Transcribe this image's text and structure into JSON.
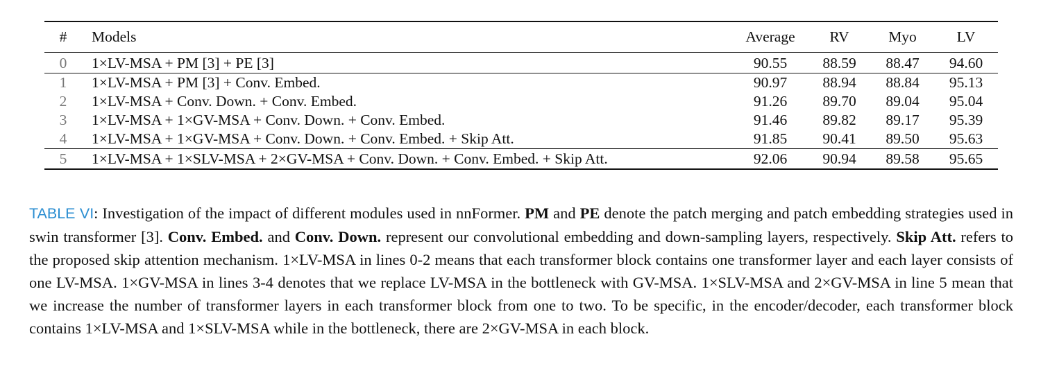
{
  "table": {
    "headers": {
      "index": "#",
      "models": "Models",
      "average": "Average",
      "rv": "RV",
      "myo": "Myo",
      "lv": "LV"
    },
    "rows": [
      {
        "index": "0",
        "model": "1×LV-MSA + PM [3] + PE [3]",
        "average": "90.55",
        "rv": "88.59",
        "myo": "88.47",
        "lv": "94.60"
      },
      {
        "index": "1",
        "model": "1×LV-MSA + PM [3] + Conv. Embed.",
        "average": "90.97",
        "rv": "88.94",
        "myo": "88.84",
        "lv": "95.13"
      },
      {
        "index": "2",
        "model": "1×LV-MSA + Conv. Down. + Conv. Embed.",
        "average": "91.26",
        "rv": "89.70",
        "myo": "89.04",
        "lv": "95.04"
      },
      {
        "index": "3",
        "model": "1×LV-MSA + 1×GV-MSA + Conv. Down. + Conv. Embed.",
        "average": "91.46",
        "rv": "89.82",
        "myo": "89.17",
        "lv": "95.39"
      },
      {
        "index": "4",
        "model": "1×LV-MSA + 1×GV-MSA + Conv. Down. + Conv. Embed. + Skip Att.",
        "average": "91.85",
        "rv": "90.41",
        "myo": "89.50",
        "lv": "95.63"
      },
      {
        "index": "5",
        "model": "1×LV-MSA + 1×SLV-MSA + 2×GV-MSA + Conv. Down. + Conv. Embed. + Skip Att.",
        "average": "92.06",
        "rv": "90.94",
        "myo": "89.58",
        "lv": "95.65"
      }
    ]
  },
  "caption": {
    "label": "TABLE VI",
    "t1": ": Investigation of the impact of different modules used in nnFormer. ",
    "b1": "PM",
    "t2": " and ",
    "b2": "PE",
    "t3": " denote the patch merging and patch embedding strategies used in swin transformer [3]. ",
    "b3": "Conv. Embed.",
    "t4": " and ",
    "b4": "Conv. Down.",
    "t5": " represent our convolutional embedding and down-sampling layers, respectively. ",
    "b5": "Skip Att.",
    "t6": " refers to the proposed skip attention mechanism. 1×LV-MSA in lines 0-2 means that each transformer block contains one transformer layer and each layer consists of one LV-MSA. 1×GV-MSA in lines 3-4 denotes that we replace LV-MSA in the bottleneck with GV-MSA. 1×SLV-MSA and 2×GV-MSA in line 5 mean that we increase the number of transformer layers in each transformer block from one to two. To be specific, in the encoder/decoder, each transformer block contains 1×LV-MSA and 1×SLV-MSA while in the bottleneck, there are 2×GV-MSA in each block."
  }
}
